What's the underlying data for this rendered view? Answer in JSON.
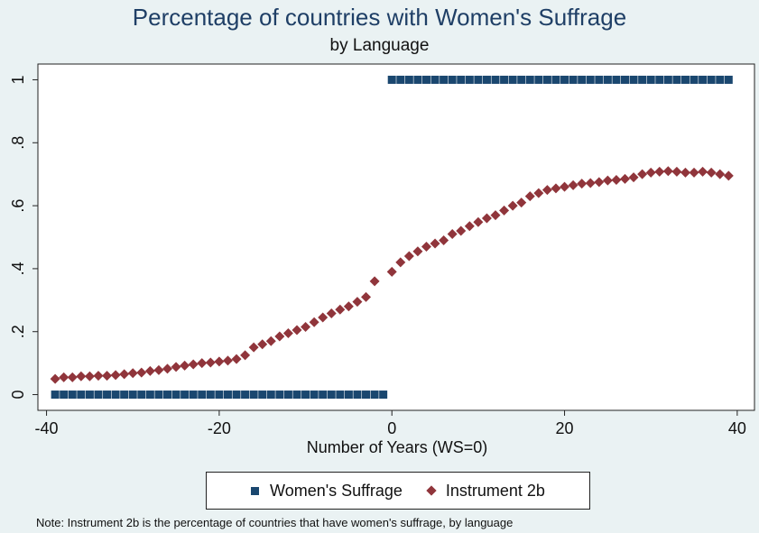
{
  "chart_data": {
    "type": "scatter",
    "title": "Percentage of countries with Women's Suffrage",
    "subtitle": "by Language",
    "xlabel": "Number of Years (WS=0)",
    "ylabel": "",
    "xlim": [
      -41,
      42
    ],
    "ylim": [
      -0.05,
      1.05
    ],
    "x_ticks": [
      -40,
      -20,
      0,
      20,
      40
    ],
    "x_tick_labels": [
      "-40",
      "-20",
      "0",
      "20",
      "40"
    ],
    "y_ticks": [
      0,
      0.2,
      0.4,
      0.6,
      0.8,
      1
    ],
    "y_tick_labels": [
      "0",
      ".2",
      ".4",
      ".6",
      ".8",
      "1"
    ],
    "grid": false,
    "legend_position": "bottom",
    "series": [
      {
        "name": "Women's Suffrage",
        "marker": "square",
        "color": "#1a476f",
        "points": [
          [
            -39,
            0
          ],
          [
            -38,
            0
          ],
          [
            -37,
            0
          ],
          [
            -36,
            0
          ],
          [
            -35,
            0
          ],
          [
            -34,
            0
          ],
          [
            -33,
            0
          ],
          [
            -32,
            0
          ],
          [
            -31,
            0
          ],
          [
            -30,
            0
          ],
          [
            -29,
            0
          ],
          [
            -28,
            0
          ],
          [
            -27,
            0
          ],
          [
            -26,
            0
          ],
          [
            -25,
            0
          ],
          [
            -24,
            0
          ],
          [
            -23,
            0
          ],
          [
            -22,
            0
          ],
          [
            -21,
            0
          ],
          [
            -20,
            0
          ],
          [
            -19,
            0
          ],
          [
            -18,
            0
          ],
          [
            -17,
            0
          ],
          [
            -16,
            0
          ],
          [
            -15,
            0
          ],
          [
            -14,
            0
          ],
          [
            -13,
            0
          ],
          [
            -12,
            0
          ],
          [
            -11,
            0
          ],
          [
            -10,
            0
          ],
          [
            -9,
            0
          ],
          [
            -8,
            0
          ],
          [
            -7,
            0
          ],
          [
            -6,
            0
          ],
          [
            -5,
            0
          ],
          [
            -4,
            0
          ],
          [
            -3,
            0
          ],
          [
            -2,
            0
          ],
          [
            -1,
            0
          ],
          [
            0,
            1
          ],
          [
            1,
            1
          ],
          [
            2,
            1
          ],
          [
            3,
            1
          ],
          [
            4,
            1
          ],
          [
            5,
            1
          ],
          [
            6,
            1
          ],
          [
            7,
            1
          ],
          [
            8,
            1
          ],
          [
            9,
            1
          ],
          [
            10,
            1
          ],
          [
            11,
            1
          ],
          [
            12,
            1
          ],
          [
            13,
            1
          ],
          [
            14,
            1
          ],
          [
            15,
            1
          ],
          [
            16,
            1
          ],
          [
            17,
            1
          ],
          [
            18,
            1
          ],
          [
            19,
            1
          ],
          [
            20,
            1
          ],
          [
            21,
            1
          ],
          [
            22,
            1
          ],
          [
            23,
            1
          ],
          [
            24,
            1
          ],
          [
            25,
            1
          ],
          [
            26,
            1
          ],
          [
            27,
            1
          ],
          [
            28,
            1
          ],
          [
            29,
            1
          ],
          [
            30,
            1
          ],
          [
            31,
            1
          ],
          [
            32,
            1
          ],
          [
            33,
            1
          ],
          [
            34,
            1
          ],
          [
            35,
            1
          ],
          [
            36,
            1
          ],
          [
            37,
            1
          ],
          [
            38,
            1
          ],
          [
            39,
            1
          ]
        ]
      },
      {
        "name": "Instrument 2b",
        "marker": "diamond",
        "color": "#90353b",
        "points": [
          [
            -39,
            0.05
          ],
          [
            -38,
            0.055
          ],
          [
            -37,
            0.055
          ],
          [
            -36,
            0.058
          ],
          [
            -35,
            0.058
          ],
          [
            -34,
            0.06
          ],
          [
            -33,
            0.06
          ],
          [
            -32,
            0.062
          ],
          [
            -31,
            0.065
          ],
          [
            -30,
            0.068
          ],
          [
            -29,
            0.07
          ],
          [
            -28,
            0.075
          ],
          [
            -27,
            0.078
          ],
          [
            -26,
            0.082
          ],
          [
            -25,
            0.088
          ],
          [
            -24,
            0.092
          ],
          [
            -23,
            0.096
          ],
          [
            -22,
            0.1
          ],
          [
            -21,
            0.102
          ],
          [
            -20,
            0.105
          ],
          [
            -19,
            0.108
          ],
          [
            -18,
            0.113
          ],
          [
            -17,
            0.125
          ],
          [
            -16,
            0.15
          ],
          [
            -15,
            0.16
          ],
          [
            -14,
            0.17
          ],
          [
            -13,
            0.185
          ],
          [
            -12,
            0.195
          ],
          [
            -11,
            0.205
          ],
          [
            -10,
            0.215
          ],
          [
            -9,
            0.23
          ],
          [
            -8,
            0.245
          ],
          [
            -7,
            0.258
          ],
          [
            -6,
            0.27
          ],
          [
            -5,
            0.28
          ],
          [
            -4,
            0.295
          ],
          [
            -3,
            0.31
          ],
          [
            -2,
            0.36
          ],
          [
            0,
            0.39
          ],
          [
            1,
            0.42
          ],
          [
            2,
            0.44
          ],
          [
            3,
            0.455
          ],
          [
            4,
            0.47
          ],
          [
            5,
            0.48
          ],
          [
            6,
            0.49
          ],
          [
            7,
            0.51
          ],
          [
            8,
            0.52
          ],
          [
            9,
            0.535
          ],
          [
            10,
            0.548
          ],
          [
            11,
            0.56
          ],
          [
            12,
            0.57
          ],
          [
            13,
            0.585
          ],
          [
            14,
            0.6
          ],
          [
            15,
            0.61
          ],
          [
            16,
            0.63
          ],
          [
            17,
            0.64
          ],
          [
            18,
            0.65
          ],
          [
            19,
            0.655
          ],
          [
            20,
            0.66
          ],
          [
            21,
            0.665
          ],
          [
            22,
            0.67
          ],
          [
            23,
            0.672
          ],
          [
            24,
            0.675
          ],
          [
            25,
            0.68
          ],
          [
            26,
            0.682
          ],
          [
            27,
            0.685
          ],
          [
            28,
            0.69
          ],
          [
            29,
            0.7
          ],
          [
            30,
            0.705
          ],
          [
            31,
            0.708
          ],
          [
            32,
            0.71
          ],
          [
            33,
            0.708
          ],
          [
            34,
            0.705
          ],
          [
            35,
            0.705
          ],
          [
            36,
            0.708
          ],
          [
            37,
            0.705
          ],
          [
            38,
            0.7
          ],
          [
            39,
            0.695
          ]
        ]
      }
    ]
  },
  "legend": {
    "items": [
      {
        "label": "Women's Suffrage"
      },
      {
        "label": "Instrument 2b"
      }
    ]
  },
  "note": "Note: Instrument 2b is the percentage of countries that have women's suffrage, by language"
}
